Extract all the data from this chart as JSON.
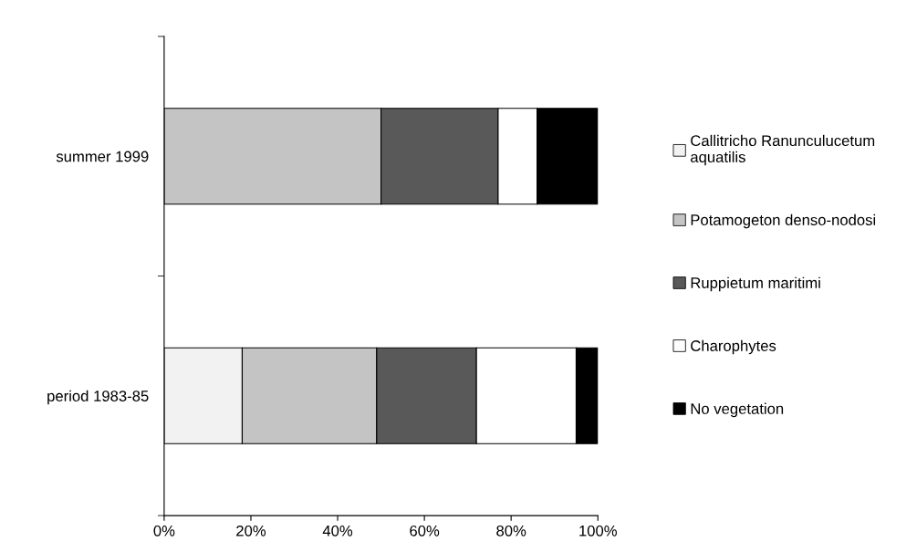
{
  "chart_data": {
    "type": "bar",
    "orientation": "horizontal",
    "stacked": true,
    "categories": [
      "summer 1999",
      "period 1983-85"
    ],
    "series": [
      {
        "name": "Callitricho Ranunculucetum aquatilis",
        "color": "#f2f2f2",
        "values": [
          0,
          18
        ]
      },
      {
        "name": "Potamogeton denso-nodosi",
        "color": "#c4c4c4",
        "values": [
          50,
          31
        ]
      },
      {
        "name": "Ruppietum maritimi",
        "color": "#595959",
        "values": [
          27,
          23
        ]
      },
      {
        "name": "Charophytes",
        "color": "#ffffff",
        "values": [
          9,
          23
        ]
      },
      {
        "name": "No vegetation",
        "color": "#000000",
        "values": [
          14,
          5
        ]
      }
    ],
    "xlim": [
      0,
      100
    ],
    "xticks": [
      {
        "value": 0,
        "label": "0%"
      },
      {
        "value": 20,
        "label": "20%"
      },
      {
        "value": 40,
        "label": "40%"
      },
      {
        "value": 60,
        "label": "60%"
      },
      {
        "value": 80,
        "label": "80%"
      },
      {
        "value": 100,
        "label": "100%"
      }
    ],
    "grid": false,
    "legend": "right"
  }
}
